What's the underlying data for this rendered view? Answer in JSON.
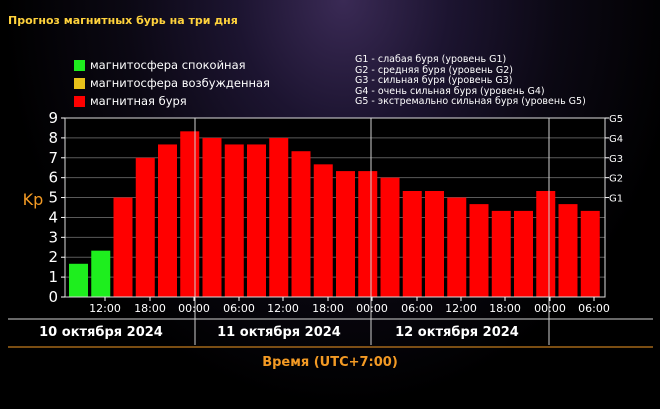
{
  "title": "Прогноз магнитных бурь на три дня",
  "legend": [
    {
      "label": "магнитосфера спокойная",
      "color": "#1eee1e"
    },
    {
      "label": "магнитосфера возбужденная",
      "color": "#e8c21a"
    },
    {
      "label": "магнитная буря",
      "color": "#ff0000"
    }
  ],
  "g_scale": [
    "G1 - слабая буря (уровень G1)",
    "G2 - средняя буря (уровень G2)",
    "G3 - сильная буря (уровень G3)",
    "G4 - очень сильная буря (уровень G4)",
    "G5 - экстремально сильная буря (уровень G5)"
  ],
  "chart_data": {
    "type": "bar",
    "ylabel": "Kp",
    "xlabel": "Время (UTC+7:00)",
    "ylim": [
      0,
      9
    ],
    "yticks": [
      "0",
      "1",
      "2",
      "3",
      "4",
      "5",
      "6",
      "7",
      "8",
      "9"
    ],
    "right_ticks": [
      {
        "label": "G1",
        "value": 5
      },
      {
        "label": "G2",
        "value": 6
      },
      {
        "label": "G3",
        "value": 7
      },
      {
        "label": "G4",
        "value": 8
      },
      {
        "label": "G5",
        "value": 9
      }
    ],
    "x_time_labels": [
      "12:00",
      "18:00",
      "00:00",
      "06:00",
      "12:00",
      "18:00",
      "00:00",
      "06:00",
      "12:00",
      "18:00",
      "00:00",
      "06:00"
    ],
    "days": [
      "10 октября 2024",
      "11 октября 2024",
      "12 октября 2024"
    ],
    "values": [
      1.67,
      2.33,
      5.0,
      7.0,
      7.67,
      8.33,
      8.0,
      7.67,
      7.67,
      8.0,
      7.33,
      6.67,
      6.33,
      6.33,
      6.0,
      5.33,
      5.33,
      5.0,
      4.67,
      4.33,
      4.33,
      5.33,
      4.67,
      4.33
    ],
    "colors": [
      "green",
      "green",
      "red",
      "red",
      "red",
      "red",
      "red",
      "red",
      "red",
      "red",
      "red",
      "red",
      "red",
      "red",
      "red",
      "red",
      "red",
      "red",
      "red",
      "red",
      "red",
      "red",
      "red",
      "red"
    ],
    "grid": true,
    "legend_position": "top-left"
  }
}
